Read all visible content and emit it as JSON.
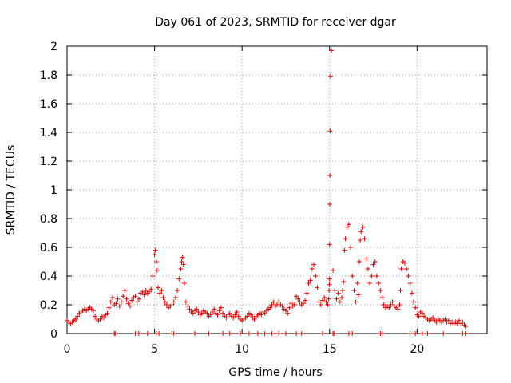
{
  "chart_data": {
    "type": "scatter",
    "title": "Day 061 of 2023, SRMTID for receiver dgar",
    "xlabel": "GPS time / hours",
    "ylabel": "SRMTID / TECUs",
    "xlim": [
      0,
      24
    ],
    "ylim": [
      0,
      2
    ],
    "xticks": [
      0,
      5,
      10,
      15,
      20
    ],
    "yticks": [
      0,
      0.2,
      0.4,
      0.6,
      0.8,
      1,
      1.2,
      1.4,
      1.6,
      1.8,
      2
    ],
    "ytick_labels": [
      "0",
      "0.2",
      "0.4",
      "0.6",
      "0.8",
      "1",
      "1.2",
      "1.4",
      "1.6",
      "1.8",
      "2"
    ],
    "grid": true,
    "marker": "+",
    "color": "#e00000",
    "series": [
      {
        "name": "SRMTID",
        "x": [
          0.0,
          0.1,
          0.2,
          0.3,
          0.4,
          0.5,
          0.6,
          0.7,
          0.8,
          0.9,
          1.0,
          1.1,
          1.2,
          1.3,
          1.4,
          1.5,
          1.6,
          1.7,
          1.8,
          1.9,
          2.0,
          2.1,
          2.2,
          2.3,
          2.4,
          2.5,
          2.6,
          2.7,
          2.8,
          2.9,
          3.0,
          3.1,
          3.2,
          3.3,
          3.4,
          3.5,
          3.6,
          3.7,
          3.8,
          3.9,
          4.0,
          4.1,
          4.2,
          4.3,
          4.4,
          4.5,
          4.6,
          4.7,
          4.8,
          4.9,
          5.0,
          5.05,
          5.1,
          5.15,
          5.2,
          5.3,
          5.4,
          5.5,
          5.6,
          5.7,
          5.8,
          5.9,
          6.0,
          6.1,
          6.2,
          6.3,
          6.4,
          6.5,
          6.55,
          6.6,
          6.65,
          6.7,
          6.8,
          6.9,
          7.0,
          7.1,
          7.2,
          7.3,
          7.4,
          7.5,
          7.6,
          7.7,
          7.8,
          7.9,
          8.0,
          8.1,
          8.2,
          8.3,
          8.4,
          8.5,
          8.6,
          8.7,
          8.8,
          8.9,
          9.0,
          9.1,
          9.2,
          9.3,
          9.4,
          9.5,
          9.6,
          9.7,
          9.8,
          9.9,
          10.0,
          10.1,
          10.2,
          10.3,
          10.4,
          10.5,
          10.6,
          10.7,
          10.8,
          10.9,
          11.0,
          11.1,
          11.2,
          11.3,
          11.4,
          11.5,
          11.6,
          11.7,
          11.8,
          11.9,
          12.0,
          12.1,
          12.2,
          12.3,
          12.4,
          12.5,
          12.6,
          12.7,
          12.8,
          12.9,
          13.0,
          13.1,
          13.2,
          13.3,
          13.4,
          13.5,
          13.6,
          13.7,
          13.8,
          13.9,
          14.0,
          14.1,
          14.2,
          14.3,
          14.4,
          14.5,
          14.6,
          14.7,
          14.8,
          14.9,
          14.95,
          14.97,
          14.99,
          15.0,
          15.0,
          15.01,
          15.02,
          15.03,
          15.05,
          15.1,
          15.2,
          15.3,
          15.4,
          15.5,
          15.6,
          15.7,
          15.75,
          15.8,
          15.85,
          15.9,
          16.0,
          16.1,
          16.2,
          16.3,
          16.4,
          16.5,
          16.6,
          16.65,
          16.7,
          16.75,
          16.8,
          16.9,
          17.0,
          17.1,
          17.2,
          17.3,
          17.4,
          17.5,
          17.6,
          17.7,
          17.8,
          17.9,
          18.0,
          18.1,
          18.2,
          18.3,
          18.4,
          18.5,
          18.6,
          18.7,
          18.8,
          18.9,
          19.0,
          19.05,
          19.1,
          19.2,
          19.3,
          19.4,
          19.5,
          19.6,
          19.7,
          19.8,
          19.9,
          20.0,
          20.1,
          20.2,
          20.3,
          20.4,
          20.5,
          20.6,
          20.7,
          20.8,
          20.9,
          21.0,
          21.1,
          21.2,
          21.3,
          21.4,
          21.5,
          21.6,
          21.7,
          21.8,
          21.9,
          22.0,
          22.1,
          22.2,
          22.3,
          22.4,
          22.5,
          22.6,
          22.7,
          22.8,
          2.7,
          2.75,
          3.9,
          4.0,
          4.1,
          4.6,
          5.1,
          5.25,
          6.0,
          6.1,
          7.3,
          8.1,
          8.9,
          9.3,
          9.9,
          10.4,
          10.9,
          11.3,
          11.7,
          12.1,
          12.5,
          13.1,
          13.4,
          14.6,
          15.2,
          15.25,
          16.1,
          16.3,
          17.9,
          18.0,
          19.6,
          19.9,
          20.3,
          20.6,
          21.5,
          22.6,
          22.8
        ],
        "y": [
          0.09,
          0.08,
          0.07,
          0.08,
          0.09,
          0.1,
          0.12,
          0.14,
          0.15,
          0.16,
          0.17,
          0.16,
          0.17,
          0.18,
          0.17,
          0.16,
          0.12,
          0.1,
          0.09,
          0.1,
          0.12,
          0.11,
          0.13,
          0.14,
          0.18,
          0.22,
          0.25,
          0.2,
          0.21,
          0.24,
          0.19,
          0.22,
          0.26,
          0.3,
          0.24,
          0.21,
          0.19,
          0.23,
          0.25,
          0.26,
          0.22,
          0.24,
          0.28,
          0.29,
          0.27,
          0.3,
          0.28,
          0.29,
          0.31,
          0.4,
          0.55,
          0.58,
          0.5,
          0.44,
          0.32,
          0.28,
          0.3,
          0.25,
          0.22,
          0.2,
          0.18,
          0.19,
          0.2,
          0.22,
          0.25,
          0.3,
          0.38,
          0.45,
          0.5,
          0.53,
          0.48,
          0.35,
          0.22,
          0.19,
          0.17,
          0.15,
          0.14,
          0.16,
          0.17,
          0.15,
          0.13,
          0.14,
          0.16,
          0.15,
          0.14,
          0.12,
          0.13,
          0.15,
          0.17,
          0.14,
          0.13,
          0.16,
          0.18,
          0.14,
          0.12,
          0.11,
          0.13,
          0.14,
          0.12,
          0.11,
          0.13,
          0.15,
          0.12,
          0.1,
          0.09,
          0.1,
          0.11,
          0.12,
          0.14,
          0.13,
          0.11,
          0.1,
          0.12,
          0.13,
          0.14,
          0.13,
          0.15,
          0.14,
          0.16,
          0.17,
          0.18,
          0.2,
          0.22,
          0.19,
          0.2,
          0.22,
          0.2,
          0.19,
          0.17,
          0.16,
          0.14,
          0.18,
          0.21,
          0.19,
          0.2,
          0.26,
          0.24,
          0.22,
          0.2,
          0.21,
          0.23,
          0.28,
          0.35,
          0.37,
          0.45,
          0.48,
          0.4,
          0.32,
          0.22,
          0.2,
          0.23,
          0.25,
          0.22,
          0.2,
          0.24,
          0.3,
          0.34,
          0.38,
          0.62,
          0.9,
          1.1,
          1.41,
          1.79,
          1.97,
          0.44,
          0.3,
          0.24,
          0.28,
          0.22,
          0.25,
          0.3,
          0.36,
          0.58,
          0.66,
          0.74,
          0.76,
          0.6,
          0.4,
          0.3,
          0.22,
          0.35,
          0.27,
          0.5,
          0.65,
          0.71,
          0.74,
          0.66,
          0.52,
          0.45,
          0.35,
          0.4,
          0.48,
          0.5,
          0.4,
          0.35,
          0.3,
          0.25,
          0.2,
          0.18,
          0.19,
          0.18,
          0.2,
          0.22,
          0.19,
          0.18,
          0.17,
          0.2,
          0.3,
          0.45,
          0.5,
          0.49,
          0.45,
          0.4,
          0.35,
          0.28,
          0.22,
          0.18,
          0.13,
          0.12,
          0.15,
          0.14,
          0.12,
          0.11,
          0.1,
          0.09,
          0.1,
          0.11,
          0.09,
          0.08,
          0.1,
          0.09,
          0.08,
          0.09,
          0.1,
          0.08,
          0.09,
          0.07,
          0.08,
          0.07,
          0.08,
          0.07,
          0.09,
          0.07,
          0.08,
          0.06,
          0.05,
          0.0,
          0.0,
          0.0,
          0.0,
          0.0,
          0.0,
          0.0,
          0.0,
          0.0,
          0.0,
          0.0,
          0.0,
          0.0,
          0.0,
          0.0,
          0.0,
          0.0,
          0.0,
          0.0,
          0.0,
          0.0,
          0.0,
          0.0,
          0.0,
          0.0,
          0.0,
          0.0,
          0.0,
          0.0,
          0.0,
          0.0,
          0.0,
          0.0,
          0.0,
          0.0,
          0.0,
          0.0
        ]
      }
    ]
  }
}
